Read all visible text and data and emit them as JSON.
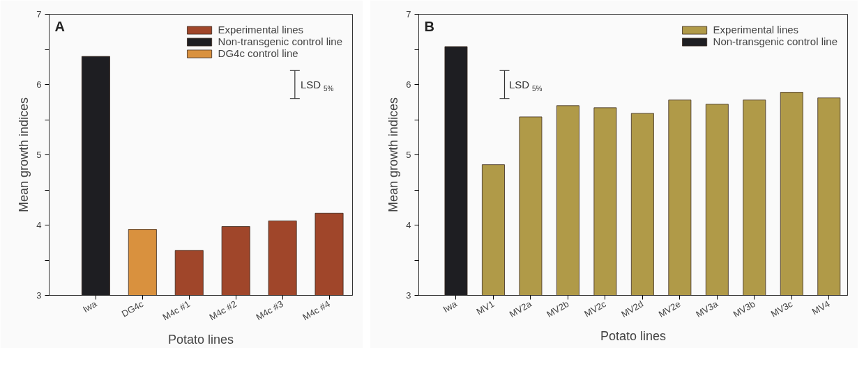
{
  "chart_data": [
    {
      "type": "bar",
      "title": "A",
      "xlabel": "Potato lines",
      "ylabel": "Mean growth indices",
      "categories": [
        "Iwa",
        "DG4c",
        "M4c #1",
        "M4c #2",
        "M4c #3",
        "M4c #4"
      ],
      "series": [
        {
          "name": "Experimental lines",
          "color": "#a0462a",
          "values": [
            null,
            null,
            3.64,
            3.98,
            4.06,
            4.17
          ]
        },
        {
          "name": "Non-transgenic control line",
          "color": "#1e1e22",
          "values": [
            6.4,
            null,
            null,
            null,
            null,
            null
          ]
        },
        {
          "name": "DG4c control line",
          "color": "#d9913e",
          "values": [
            null,
            3.94,
            null,
            null,
            null,
            null
          ]
        }
      ],
      "annotations": [
        "LSD $_{5%}$"
      ],
      "ylim": [
        3,
        7
      ],
      "yticks": [
        3,
        {
          "value": 3.5,
          "label": null
        },
        4,
        {
          "value": 4.5,
          "label": null
        },
        5,
        {
          "value": 5.5,
          "label": null
        },
        6,
        {
          "value": 6.5,
          "label": null
        },
        7
      ],
      "grid": false,
      "legend": "top right"
    },
    {
      "type": "bar",
      "title": "B",
      "xlabel": "Potato lines",
      "ylabel": "Mean growth indices",
      "categories": [
        "Iwa",
        "MV1",
        "MV2a",
        "MV2b",
        "MV2c",
        "MV2d",
        "MV2e",
        "MV3a",
        "MV3b",
        "MV3c",
        "MV4"
      ],
      "series": [
        {
          "name": "Experimental lines",
          "color": "#b09a48",
          "values": [
            null,
            4.86,
            5.54,
            5.7,
            5.67,
            5.59,
            5.78,
            5.72,
            5.78,
            5.89,
            5.81
          ]
        },
        {
          "name": "Non-transgenic control line",
          "color": "#1e1e22",
          "values": [
            6.54,
            null,
            null,
            null,
            null,
            null,
            null,
            null,
            null,
            null,
            null
          ]
        }
      ],
      "annotations": [
        "LSD $_{5%}$"
      ],
      "ylim": [
        3,
        7
      ],
      "yticks": [
        3,
        {
          "value": 3.5,
          "label": null
        },
        4,
        {
          "value": 4.5,
          "label": null
        },
        5,
        {
          "value": 5.5,
          "label": null
        },
        6,
        {
          "value": 6.5,
          "label": null
        },
        7
      ],
      "grid": false,
      "legend": "top right"
    }
  ]
}
